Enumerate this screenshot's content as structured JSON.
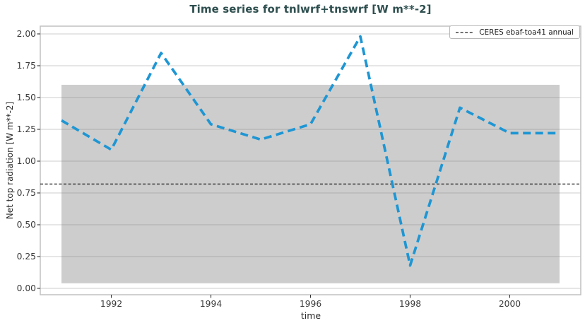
{
  "window": {
    "title": "Time series for tnlwrf+tnswrf [W m**-2]"
  },
  "legend": {
    "label": "CERES ebaf-toa41 annual"
  },
  "colors": {
    "title_text": "#2f4f4f",
    "series_blue": "#1e96d4",
    "reference_black": "#1c1c1c",
    "band_gray": "#cdcdcd",
    "grid_gray": "#808080",
    "frame_gray": "#c0c0c0",
    "tick_text": "#3a3a3a",
    "tick_mark": "#333333"
  },
  "chart_data": {
    "type": "line",
    "title": "Time series for tnlwrf+tnswrf [W m**-2]",
    "xlabel": "time",
    "ylabel": "Net top radiation [W m**-2]",
    "x": [
      1991,
      1992,
      1993,
      1994,
      1995,
      1996,
      1997,
      1998,
      1999,
      2000,
      2001
    ],
    "series": [
      {
        "name": "tnlwrf+tnswrf",
        "color": "#1e96d4",
        "line_style": "dashed",
        "values": [
          1.32,
          1.09,
          1.85,
          1.29,
          1.17,
          1.29,
          1.98,
          0.18,
          1.42,
          1.22,
          1.22
        ]
      }
    ],
    "reference_line": {
      "label": "CERES ebaf-toa41 annual",
      "value": 0.82,
      "color": "#1c1c1c",
      "line_style": "dashed"
    },
    "band": {
      "xmin": 1991,
      "xmax": 2001,
      "ymin": 0.04,
      "ymax": 1.6,
      "color": "#cdcdcd"
    },
    "xticks": [
      1992,
      1994,
      1996,
      1998,
      2000
    ],
    "yticks": [
      0.0,
      0.25,
      0.5,
      0.75,
      1.0,
      1.25,
      1.5,
      1.75,
      2.0
    ],
    "xlim": [
      1990.574,
      2001.426
    ],
    "ylim": [
      -0.05,
      2.061
    ],
    "grid": true,
    "legend_position": "upper right"
  }
}
